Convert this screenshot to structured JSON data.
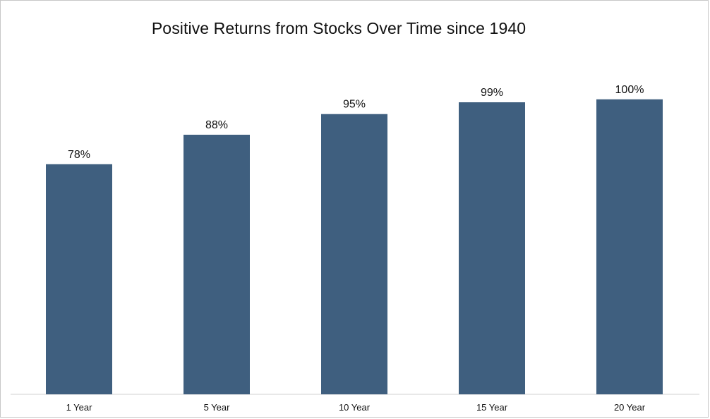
{
  "chart_data": {
    "type": "bar",
    "title": "Positive Returns from Stocks Over Time since 1940",
    "categories": [
      "1 Year",
      "5 Year",
      "10 Year",
      "15 Year",
      "20 Year"
    ],
    "values": [
      78,
      88,
      95,
      99,
      100
    ],
    "data_labels": [
      "78%",
      "88%",
      "95%",
      "99%",
      "100%"
    ],
    "xlabel": "",
    "ylabel": "",
    "ylim": [
      0,
      110
    ],
    "grid": false,
    "legend": "none",
    "colors": {
      "bar": "#3f5f7f"
    }
  }
}
